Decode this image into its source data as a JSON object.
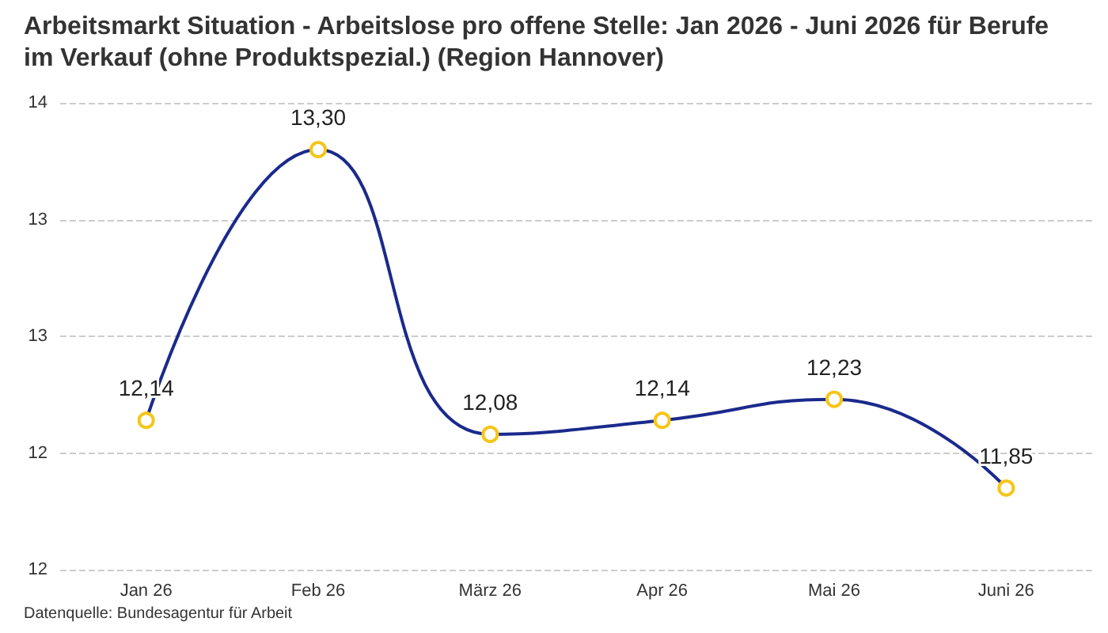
{
  "chart_data": {
    "type": "line",
    "title": "Arbeitsmarkt Situation - Arbeitslose pro offene Stelle: Jan 2026 - Juni 2026 für Berufe im Verkauf (ohne Produktspezial.) (Region Hannover)",
    "categories": [
      "Jan 26",
      "Feb 26",
      "März 26",
      "Apr 26",
      "Mai 26",
      "Juni 26"
    ],
    "series": [
      {
        "color": "#1a2a8c",
        "colors": [
          "#f5c518",
          "#f5c518",
          "#f5c518",
          "#f5c518",
          "#f5c518",
          "#f5c518"
        ],
        "values": [
          12.14,
          13.3,
          12.08,
          12.14,
          12.23,
          11.85
        ],
        "value_labels": [
          "12,14",
          "13,30",
          "12,08",
          "12,14",
          "12,23",
          "11,85"
        ]
      }
    ],
    "ylim": [
      11.5,
      13.5
    ],
    "yticks": [
      {
        "value": 11.5,
        "label": "12"
      },
      {
        "value": 12,
        "label": "12"
      },
      {
        "value": 12.5,
        "label": "13"
      },
      {
        "value": 13,
        "label": "13"
      },
      {
        "value": 13.5,
        "label": "14"
      }
    ],
    "grid": "y",
    "marker": "circle",
    "annotations": [
      "Datenquelle: Bundesagentur für Arbeit"
    ]
  }
}
